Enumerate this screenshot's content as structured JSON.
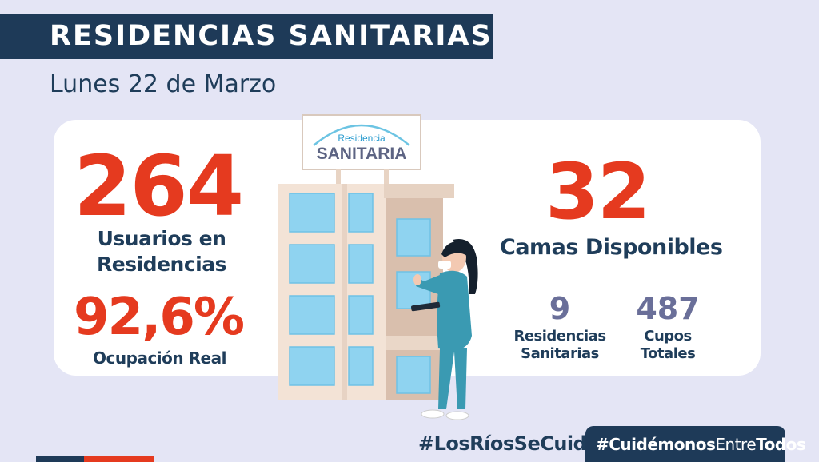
{
  "header": {
    "title": "RESIDENCIAS SANITARIAS",
    "date": "Lunes 22 de Marzo"
  },
  "left_stats": {
    "users_value": "264",
    "users_label_line1": "Usuarios en",
    "users_label_line2": "Residencias",
    "occupancy_value": "92,6%",
    "occupancy_label": "Ocupación Real"
  },
  "right_stats": {
    "beds_value": "32",
    "beds_label": "Camas Disponibles",
    "residences_value": "9",
    "residences_label_line1": "Residencias",
    "residences_label_line2": "Sanitarias",
    "capacity_value": "487",
    "capacity_label_line1": "Cupos",
    "capacity_label_line2": "Totales"
  },
  "sign": {
    "line1": "Residencia",
    "line2": "SANITARIA"
  },
  "footer": {
    "hashtag_left": "#LosRíosSeCuida",
    "hashtag_right_part1": "#Cuidémonos",
    "hashtag_right_part2": "Entre",
    "hashtag_right_part3": "Todos"
  },
  "colors": {
    "navy": "#1e3a58",
    "red": "#e53a1f",
    "background": "#e4e5f5",
    "slate": "#6a6f99"
  }
}
